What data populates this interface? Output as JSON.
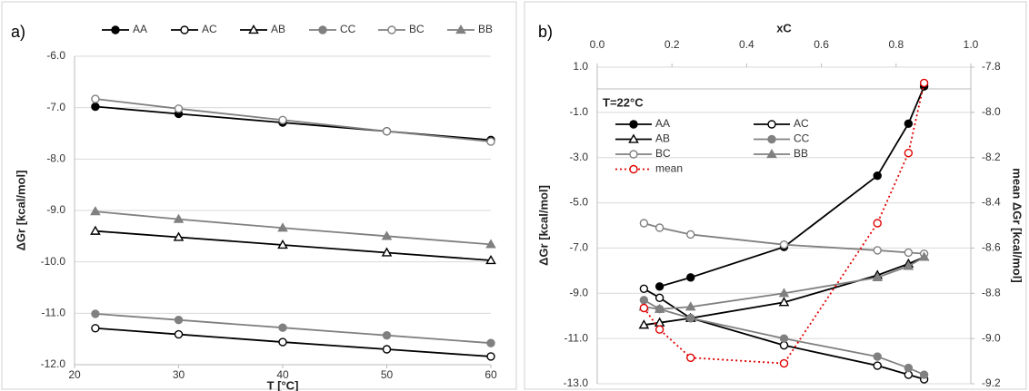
{
  "chart_data": [
    {
      "type": "line",
      "label": "a)",
      "xlabel": "T [°C]",
      "ylabel": "ΔGr [kcal/mol]",
      "x": [
        22,
        30,
        40,
        50,
        60
      ],
      "xlim": [
        20,
        60
      ],
      "xticks": [
        20,
        30,
        40,
        50,
        60
      ],
      "ylim": [
        -12,
        -6
      ],
      "yticks": [
        {
          "value": -12,
          "label": "-12.0"
        },
        {
          "value": -11,
          "label": "-11.0"
        },
        {
          "value": -10,
          "label": "-10.0"
        },
        {
          "value": -9,
          "label": "-9.0"
        },
        {
          "value": -8,
          "label": "-8.0"
        },
        {
          "value": -7,
          "label": "-7.0"
        },
        {
          "value": -6,
          "label": "-6.0"
        }
      ],
      "grid": true,
      "legend": "top",
      "series": [
        {
          "name": "AA",
          "color": "#000000",
          "marker": "circle-filled",
          "values": [
            -6.98,
            -7.12,
            -7.29,
            -7.46,
            -7.63
          ]
        },
        {
          "name": "AC",
          "color": "#000000",
          "marker": "circle-open",
          "values": [
            -11.29,
            -11.41,
            -11.56,
            -11.7,
            -11.84
          ]
        },
        {
          "name": "AB",
          "color": "#000000",
          "marker": "triangle-open",
          "values": [
            -9.4,
            -9.52,
            -9.67,
            -9.82,
            -9.97
          ]
        },
        {
          "name": "CC",
          "color": "#808080",
          "marker": "circle-filled",
          "values": [
            -11.01,
            -11.13,
            -11.28,
            -11.43,
            -11.58
          ]
        },
        {
          "name": "BC",
          "color": "#808080",
          "marker": "circle-open",
          "values": [
            -6.83,
            -7.02,
            -7.24,
            -7.46,
            -7.66
          ]
        },
        {
          "name": "BB",
          "color": "#808080",
          "marker": "triangle-filled",
          "values": [
            -9.02,
            -9.17,
            -9.34,
            -9.5,
            -9.66
          ]
        }
      ]
    },
    {
      "type": "line",
      "label": "b)",
      "xlabel": "xC",
      "ylabel": "ΔGr [kcal/mol]",
      "y2label": "mean ΔGr [kcal/mol]",
      "title": "T=22°C",
      "xaxis": "top",
      "x": [
        0.125,
        0.167,
        0.25,
        0.5,
        0.75,
        0.833,
        0.875
      ],
      "xlim": [
        0,
        1
      ],
      "xticks": [
        {
          "value": 0,
          "label": "0.0"
        },
        0.2,
        0.4,
        0.6,
        0.8,
        {
          "value": 1,
          "label": "1.0"
        }
      ],
      "ylim": [
        -13,
        1
      ],
      "yticks": [
        {
          "value": -13,
          "label": "-13.0"
        },
        {
          "value": -11,
          "label": "-11.0"
        },
        {
          "value": -9,
          "label": "-9.0"
        },
        {
          "value": -7,
          "label": "-7.0"
        },
        {
          "value": -5,
          "label": "-5.0"
        },
        {
          "value": -3,
          "label": "-3.0"
        },
        {
          "value": -1,
          "label": "-1.0"
        },
        {
          "value": 1,
          "label": "1.0"
        }
      ],
      "y2lim": [
        -9.2,
        -7.8
      ],
      "y2ticks": [
        -9.2,
        {
          "value": -9,
          "label": "-9.0"
        },
        -8.8,
        -8.6,
        -8.4,
        -8.2,
        {
          "value": -8,
          "label": "-8.0"
        },
        -7.8
      ],
      "grid": true,
      "legend": "upper-left",
      "series": [
        {
          "name": "AA",
          "color": "#000000",
          "marker": "circle-filled",
          "values": [
            null,
            -8.7,
            -8.3,
            -6.95,
            -3.8,
            -1.5,
            0.15
          ]
        },
        {
          "name": "AC",
          "color": "#000000",
          "marker": "circle-open",
          "values": [
            -8.8,
            -9.2,
            -10.1,
            -11.3,
            -12.2,
            -12.6,
            -12.8
          ]
        },
        {
          "name": "AB",
          "color": "#000000",
          "marker": "triangle-open",
          "values": [
            -10.4,
            -10.3,
            -10.1,
            -9.4,
            -8.2,
            -7.7,
            -7.4
          ]
        },
        {
          "name": "CC",
          "color": "#808080",
          "marker": "circle-filled",
          "values": [
            -9.3,
            -9.7,
            -10.1,
            -11.0,
            -11.8,
            -12.3,
            -12.6
          ]
        },
        {
          "name": "BC",
          "color": "#808080",
          "marker": "circle-open",
          "values": [
            -5.9,
            -6.1,
            -6.4,
            -6.85,
            -7.1,
            -7.2,
            -7.25
          ]
        },
        {
          "name": "BB",
          "color": "#808080",
          "marker": "triangle-filled",
          "values": [
            -9.6,
            -9.7,
            -9.6,
            -9.0,
            -8.3,
            -7.8,
            -7.4
          ]
        },
        {
          "name": "mean",
          "color": "#e00000",
          "marker": "circle-open",
          "dash": "dotted",
          "axis": "y2",
          "values": [
            -8.865,
            -8.96,
            -9.085,
            -9.11,
            -8.49,
            -8.18,
            -7.87
          ]
        }
      ]
    }
  ]
}
